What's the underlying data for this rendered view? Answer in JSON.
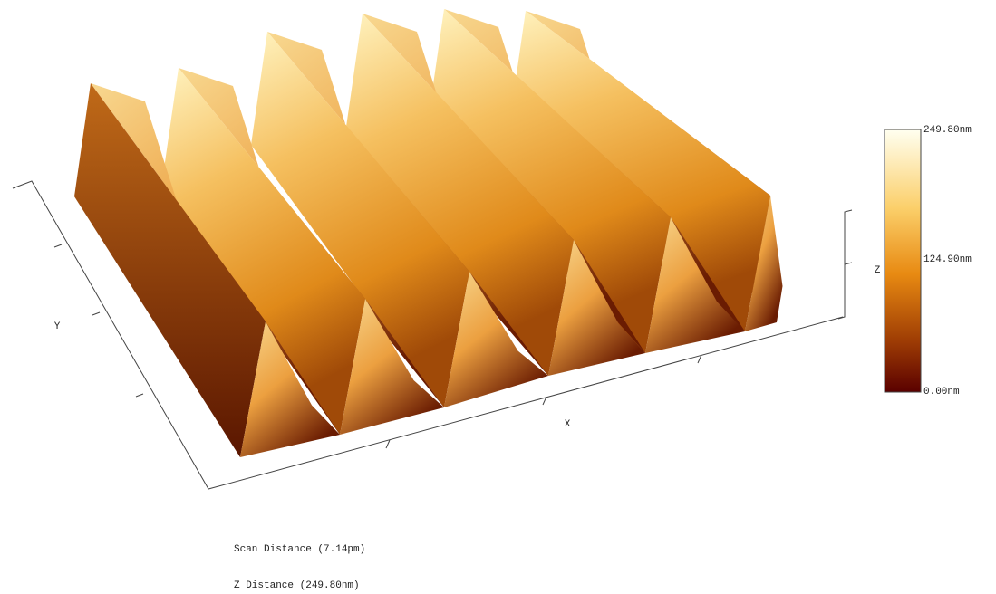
{
  "axes": {
    "x_label": "X",
    "y_label": "Y",
    "z_label": "Z"
  },
  "colorbar": {
    "labels": [
      "249.80nm",
      "124.90nm",
      "0.00nm"
    ]
  },
  "footer": {
    "scan_distance": "Scan Distance (7.14pm)",
    "z_distance": "Z Distance (249.80nm)"
  }
}
